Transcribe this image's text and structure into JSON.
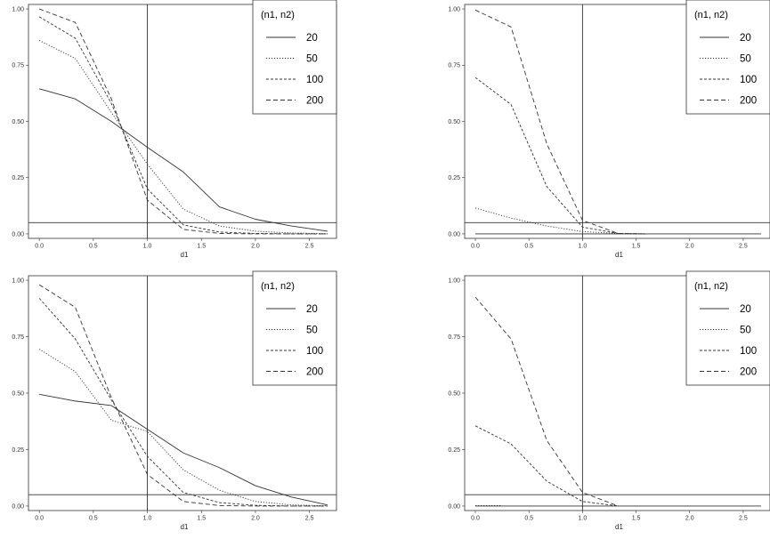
{
  "chart_data": [
    {
      "type": "line",
      "xlabel": "d1",
      "ylabel": "",
      "xlim": [
        -0.1,
        2.75
      ],
      "ylim": [
        -0.02,
        1.02
      ],
      "x_ticks": [
        "0.0",
        "0.5",
        "1.0",
        "1.5",
        "2.0",
        "2.5"
      ],
      "y_ticks": [
        "0.00",
        "0.25",
        "0.50",
        "0.75",
        "1.00"
      ],
      "vline": 1.0,
      "hline": 0.05,
      "grid": false,
      "legend_title": "(n1, n2)",
      "legend_position": "top-right",
      "series": [
        {
          "name": "20",
          "dash": "solid",
          "x": [
            0,
            0.333,
            0.667,
            1.0,
            1.333,
            1.667,
            2.0,
            2.333,
            2.667
          ],
          "y": [
            0.645,
            0.6,
            0.5,
            0.385,
            0.275,
            0.12,
            0.065,
            0.035,
            0.012
          ]
        },
        {
          "name": "50",
          "dash": "dotted",
          "x": [
            0,
            0.333,
            0.667,
            1.0,
            1.333,
            1.667,
            2.0,
            2.333,
            2.667
          ],
          "y": [
            0.86,
            0.78,
            0.54,
            0.31,
            0.11,
            0.035,
            0.012,
            0.004,
            0.001
          ]
        },
        {
          "name": "100",
          "dash": "dense",
          "x": [
            0,
            0.333,
            0.667,
            1.0,
            1.333,
            1.667,
            2.0,
            2.333,
            2.667
          ],
          "y": [
            0.965,
            0.87,
            0.58,
            0.2,
            0.04,
            0.008,
            0.002,
            0.0,
            0.0
          ]
        },
        {
          "name": "200",
          "dash": "dashed",
          "x": [
            0,
            0.333,
            0.667,
            1.0,
            1.333,
            1.667,
            2.0,
            2.333,
            2.667
          ],
          "y": [
            1.0,
            0.94,
            0.6,
            0.15,
            0.02,
            0.002,
            0.0,
            0.0,
            0.0
          ]
        }
      ]
    },
    {
      "type": "line",
      "xlabel": "d1",
      "ylabel": "",
      "xlim": [
        -0.1,
        2.75
      ],
      "ylim": [
        -0.02,
        1.02
      ],
      "x_ticks": [
        "0.0",
        "0.5",
        "1.0",
        "1.5",
        "2.0",
        "2.5"
      ],
      "y_ticks": [
        "0.00",
        "0.25",
        "0.50",
        "0.75",
        "1.00"
      ],
      "vline": 1.0,
      "hline": 0.05,
      "grid": false,
      "legend_title": "(n1, n2)",
      "legend_position": "top-right",
      "series": [
        {
          "name": "20",
          "dash": "solid",
          "x": [
            0,
            0.5,
            1.0,
            1.5,
            2.0,
            2.5,
            2.667
          ],
          "y": [
            0.0,
            0.0,
            0.0,
            0.0,
            0.0,
            0.0,
            0.0
          ]
        },
        {
          "name": "50",
          "dash": "dotted",
          "x": [
            0,
            0.333,
            0.667,
            1.0,
            1.333,
            1.6
          ],
          "y": [
            0.115,
            0.07,
            0.035,
            0.01,
            0.002,
            0.0
          ]
        },
        {
          "name": "100",
          "dash": "dense",
          "x": [
            0,
            0.333,
            0.667,
            1.0,
            1.333,
            1.6
          ],
          "y": [
            0.695,
            0.575,
            0.21,
            0.03,
            0.002,
            0.0
          ]
        },
        {
          "name": "200",
          "dash": "dashed",
          "x": [
            0,
            0.333,
            0.667,
            1.0,
            1.333,
            1.6
          ],
          "y": [
            0.995,
            0.92,
            0.4,
            0.06,
            0.002,
            0.0
          ]
        }
      ]
    },
    {
      "type": "line",
      "xlabel": "d1",
      "ylabel": "",
      "xlim": [
        -0.1,
        2.75
      ],
      "ylim": [
        -0.02,
        1.02
      ],
      "x_ticks": [
        "0.0",
        "0.5",
        "1.0",
        "1.5",
        "2.0",
        "2.5"
      ],
      "y_ticks": [
        "0.00",
        "0.25",
        "0.50",
        "0.75",
        "1.00"
      ],
      "vline": 1.0,
      "hline": 0.05,
      "grid": false,
      "legend_title": "(n1, n2)",
      "legend_position": "top-right",
      "series": [
        {
          "name": "20",
          "dash": "solid",
          "x": [
            0,
            0.333,
            0.667,
            1.0,
            1.333,
            1.667,
            2.0,
            2.333,
            2.667
          ],
          "y": [
            0.495,
            0.465,
            0.445,
            0.34,
            0.235,
            0.17,
            0.09,
            0.04,
            0.005
          ]
        },
        {
          "name": "50",
          "dash": "dotted",
          "x": [
            0,
            0.333,
            0.667,
            1.0,
            1.333,
            1.667,
            2.0,
            2.333,
            2.667
          ],
          "y": [
            0.695,
            0.595,
            0.38,
            0.33,
            0.16,
            0.07,
            0.02,
            0.005,
            0.001
          ]
        },
        {
          "name": "100",
          "dash": "dense",
          "x": [
            0,
            0.333,
            0.667,
            1.0,
            1.333,
            1.667,
            2.0,
            2.333,
            2.667
          ],
          "y": [
            0.92,
            0.74,
            0.47,
            0.22,
            0.06,
            0.015,
            0.003,
            0.0,
            0.0
          ]
        },
        {
          "name": "200",
          "dash": "dashed",
          "x": [
            0,
            0.333,
            0.667,
            1.0,
            1.333,
            1.667,
            2.0,
            2.333,
            2.667
          ],
          "y": [
            0.98,
            0.88,
            0.48,
            0.14,
            0.02,
            0.002,
            0.0,
            0.0,
            0.0
          ]
        }
      ]
    },
    {
      "type": "line",
      "xlabel": "d1",
      "ylabel": "",
      "xlim": [
        -0.1,
        2.75
      ],
      "ylim": [
        -0.02,
        1.02
      ],
      "x_ticks": [
        "0.0",
        "0.5",
        "1.0",
        "1.5",
        "2.0",
        "2.5"
      ],
      "y_ticks": [
        "0.00",
        "0.25",
        "0.50",
        "0.75",
        "1.00"
      ],
      "vline": 1.0,
      "hline": 0.05,
      "grid": false,
      "legend_title": "(n1, n2)",
      "legend_position": "top-right",
      "series": [
        {
          "name": "20",
          "dash": "solid",
          "x": [
            0,
            0.5,
            1.0,
            1.5,
            2.0,
            2.5,
            2.667
          ],
          "y": [
            0.0,
            0.0,
            0.0,
            0.0,
            0.0,
            0.0,
            0.0
          ]
        },
        {
          "name": "50",
          "dash": "dotted",
          "x": [
            0,
            0.25
          ],
          "y": [
            0.002,
            0.002
          ]
        },
        {
          "name": "100",
          "dash": "dense",
          "x": [
            0,
            0.333,
            0.667,
            1.0,
            1.333
          ],
          "y": [
            0.355,
            0.275,
            0.11,
            0.02,
            0.0
          ]
        },
        {
          "name": "200",
          "dash": "dashed",
          "x": [
            0,
            0.333,
            0.667,
            1.0,
            1.333
          ],
          "y": [
            0.925,
            0.74,
            0.29,
            0.06,
            0.0
          ]
        }
      ]
    }
  ]
}
